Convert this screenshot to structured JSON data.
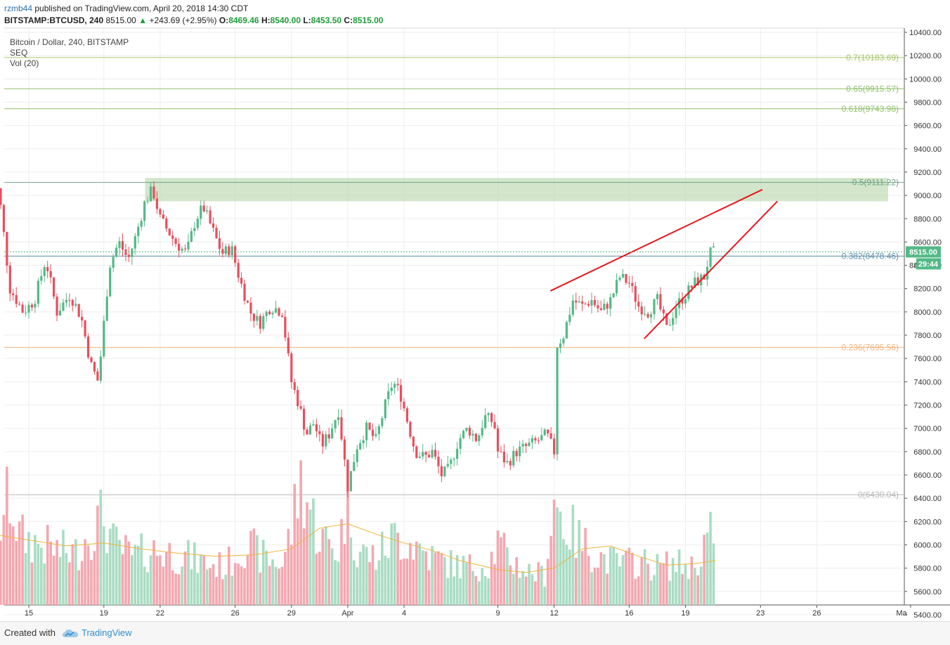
{
  "header": {
    "user": "rzmb44",
    "published_text": "published on TradingView.com, April 20, 2018 14:30 CDT",
    "symbol": "BITSTAMP:BTCUSD, 240",
    "last": "8515.00",
    "change": "+243.69 (+2.95%)",
    "o_label": "O:",
    "o_value": "8469.46",
    "h_label": "H:",
    "h_value": "8540.00",
    "l_label": "L:",
    "l_value": "8453.50",
    "c_label": "C:",
    "c_value": "8515.00"
  },
  "legend": {
    "series_name": "Bitcoin / Dollar, 240, BITSTAMP",
    "indicator_1": "SEQ",
    "indicator_2": "Vol (20)"
  },
  "footer": {
    "created_with": "Created with",
    "brand": "TradingView"
  },
  "colors": {
    "up": "#53b987",
    "down": "#eb4d5c",
    "vol_up": "#a9dcc3",
    "vol_down": "#f4a7b0",
    "trendline": "#e8161f",
    "zone": "#b5d6a9",
    "price_tag": "#53b987"
  },
  "chart_data": {
    "type": "candlestick",
    "symbol": "BTCUSD",
    "interval": "240",
    "y_axis": {
      "min": 5300,
      "max": 10400,
      "tick_labels": [
        "10400.00",
        "10200.00",
        "10000.00",
        "9800.00",
        "9600.00",
        "9400.00",
        "9200.00",
        "9000.00",
        "8800.00",
        "8600.00",
        "8400.00",
        "8200.00",
        "8000.00",
        "7800.00",
        "7600.00",
        "7400.00",
        "7200.00",
        "7000.00",
        "6800.00",
        "6600.00",
        "6400.00",
        "6200.00",
        "6000.00",
        "5800.00",
        "5600.00",
        "5400.00"
      ]
    },
    "x_axis": {
      "tick_labels": [
        {
          "label": "15",
          "day": 15
        },
        {
          "label": "19",
          "day": 19
        },
        {
          "label": "22",
          "day": 22
        },
        {
          "label": "26",
          "day": 26
        },
        {
          "label": "29",
          "day": 29
        },
        {
          "label": "Apr",
          "day": 32
        },
        {
          "label": "4",
          "day": 35
        },
        {
          "label": "9",
          "day": 40
        },
        {
          "label": "12",
          "day": 43
        },
        {
          "label": "16",
          "day": 47
        },
        {
          "label": "19",
          "day": 50
        },
        {
          "label": "23",
          "day": 54
        },
        {
          "label": "26",
          "day": 57
        },
        {
          "label": "Ma",
          "day": 62
        }
      ]
    },
    "price_path": [
      [
        13.0,
        9350
      ],
      [
        13.5,
        8900
      ],
      [
        14.0,
        8200
      ],
      [
        14.7,
        8000
      ],
      [
        15.3,
        8100
      ],
      [
        15.9,
        8450
      ],
      [
        16.5,
        8000
      ],
      [
        17.2,
        8150
      ],
      [
        17.8,
        7950
      ],
      [
        18.3,
        7550
      ],
      [
        18.7,
        7400
      ],
      [
        19.3,
        8400
      ],
      [
        19.8,
        8600
      ],
      [
        20.3,
        8450
      ],
      [
        20.7,
        8650
      ],
      [
        21.2,
        8950
      ],
      [
        21.6,
        9050
      ],
      [
        22.0,
        8800
      ],
      [
        22.4,
        8700
      ],
      [
        22.8,
        8600
      ],
      [
        23.4,
        8500
      ],
      [
        23.9,
        8800
      ],
      [
        24.3,
        8900
      ],
      [
        24.8,
        8700
      ],
      [
        25.3,
        8500
      ],
      [
        25.8,
        8550
      ],
      [
        26.2,
        8300
      ],
      [
        26.8,
        8000
      ],
      [
        27.3,
        7900
      ],
      [
        27.9,
        8050
      ],
      [
        28.5,
        8000
      ],
      [
        29.0,
        7400
      ],
      [
        29.4,
        7200
      ],
      [
        29.8,
        6950
      ],
      [
        30.2,
        7050
      ],
      [
        30.6,
        6850
      ],
      [
        31.0,
        6950
      ],
      [
        31.5,
        7150
      ],
      [
        32.0,
        6500
      ],
      [
        32.5,
        6850
      ],
      [
        33.0,
        7000
      ],
      [
        33.5,
        6900
      ],
      [
        34.0,
        7200
      ],
      [
        34.4,
        7400
      ],
      [
        34.8,
        7300
      ],
      [
        35.2,
        7050
      ],
      [
        35.6,
        6800
      ],
      [
        36.1,
        6750
      ],
      [
        36.5,
        6800
      ],
      [
        37.0,
        6600
      ],
      [
        37.4,
        6650
      ],
      [
        37.9,
        6900
      ],
      [
        38.4,
        7000
      ],
      [
        38.9,
        6900
      ],
      [
        39.3,
        7100
      ],
      [
        39.8,
        7050
      ],
      [
        40.0,
        6800
      ],
      [
        40.5,
        6700
      ],
      [
        41.0,
        6800
      ],
      [
        41.6,
        6850
      ],
      [
        42.2,
        6900
      ],
      [
        42.6,
        6950
      ],
      [
        43.0,
        6800
      ],
      [
        43.1,
        7700
      ],
      [
        43.5,
        7800
      ],
      [
        44.0,
        8100
      ],
      [
        44.5,
        8050
      ],
      [
        45.0,
        8100
      ],
      [
        45.5,
        8000
      ],
      [
        46.0,
        8100
      ],
      [
        46.5,
        8300
      ],
      [
        47.0,
        8250
      ],
      [
        47.5,
        8050
      ],
      [
        48.0,
        8000
      ],
      [
        48.5,
        8100
      ],
      [
        49.0,
        7850
      ],
      [
        49.5,
        8050
      ],
      [
        50.0,
        8150
      ],
      [
        50.5,
        8250
      ],
      [
        51.0,
        8300
      ],
      [
        51.3,
        8500
      ],
      [
        51.6,
        8515
      ]
    ],
    "volume_path": [
      [
        13.0,
        0.35
      ],
      [
        13.5,
        0.6
      ],
      [
        14.0,
        0.8
      ],
      [
        14.5,
        0.5
      ],
      [
        15.5,
        0.45
      ],
      [
        16.5,
        0.4
      ],
      [
        17.5,
        0.38
      ],
      [
        18.3,
        0.55
      ],
      [
        19.0,
        0.65
      ],
      [
        19.5,
        0.45
      ],
      [
        20.5,
        0.35
      ],
      [
        21.5,
        0.4
      ],
      [
        22.5,
        0.38
      ],
      [
        23.5,
        0.35
      ],
      [
        24.5,
        0.3
      ],
      [
        25.5,
        0.28
      ],
      [
        26.5,
        0.45
      ],
      [
        27.5,
        0.35
      ],
      [
        28.5,
        0.3
      ],
      [
        29.0,
        0.55
      ],
      [
        29.5,
        0.95
      ],
      [
        30.0,
        0.7
      ],
      [
        30.5,
        0.5
      ],
      [
        31.5,
        0.4
      ],
      [
        32.0,
        0.8
      ],
      [
        32.5,
        0.4
      ],
      [
        33.5,
        0.35
      ],
      [
        34.5,
        0.5
      ],
      [
        35.5,
        0.45
      ],
      [
        36.5,
        0.35
      ],
      [
        37.5,
        0.3
      ],
      [
        38.5,
        0.28
      ],
      [
        39.5,
        0.3
      ],
      [
        40.0,
        0.45
      ],
      [
        40.5,
        0.35
      ],
      [
        41.5,
        0.25
      ],
      [
        42.5,
        0.22
      ],
      [
        43.0,
        0.78
      ],
      [
        43.5,
        0.6
      ],
      [
        44.5,
        0.45
      ],
      [
        45.5,
        0.35
      ],
      [
        46.5,
        0.3
      ],
      [
        47.5,
        0.32
      ],
      [
        48.5,
        0.28
      ],
      [
        49.5,
        0.3
      ],
      [
        50.5,
        0.28
      ],
      [
        51.3,
        0.55
      ],
      [
        51.6,
        0.25
      ]
    ],
    "volume_ma": [
      [
        13.0,
        0.48
      ],
      [
        15.0,
        0.44
      ],
      [
        17.0,
        0.4
      ],
      [
        19.0,
        0.42
      ],
      [
        21.0,
        0.38
      ],
      [
        23.0,
        0.35
      ],
      [
        25.0,
        0.33
      ],
      [
        27.0,
        0.34
      ],
      [
        29.0,
        0.38
      ],
      [
        30.5,
        0.52
      ],
      [
        32.0,
        0.55
      ],
      [
        33.5,
        0.48
      ],
      [
        35.0,
        0.42
      ],
      [
        36.5,
        0.37
      ],
      [
        38.0,
        0.3
      ],
      [
        40.0,
        0.24
      ],
      [
        41.5,
        0.22
      ],
      [
        43.0,
        0.25
      ],
      [
        44.5,
        0.38
      ],
      [
        46.0,
        0.4
      ],
      [
        47.5,
        0.33
      ],
      [
        49.0,
        0.27
      ],
      [
        50.5,
        0.28
      ],
      [
        51.6,
        0.3
      ]
    ],
    "fib_levels": [
      {
        "ratio": "0.7",
        "price": 10183.69,
        "label": "0.7(10183.69)",
        "color": "#a8c66c"
      },
      {
        "ratio": "0.65",
        "price": 9915.57,
        "label": "0.65(9915.57)",
        "color": "#8fbf6a"
      },
      {
        "ratio": "0.618",
        "price": 9743.98,
        "label": "0.618(9743.98)",
        "color": "#8fbf6a"
      },
      {
        "ratio": "0.5",
        "price": 9111.22,
        "label": "0.5(9111.22)",
        "color": "#6fa287"
      },
      {
        "ratio": "0.382",
        "price": 8478.46,
        "label": "0.382(8478.46)",
        "color": "#5e8fa6"
      },
      {
        "ratio": "0.236",
        "price": 7695.56,
        "label": "0.236(7695.56)",
        "color": "#f2b27c"
      },
      {
        "ratio": "0",
        "price": 6430.04,
        "label": "0(6430.04)",
        "color": "#b8b8b8"
      }
    ],
    "resistance_zone": {
      "day_start": 21.2,
      "day_end": 62.0,
      "price_low": 8950,
      "price_high": 9150
    },
    "trendlines": [
      {
        "day1": 42.8,
        "p1": 8180,
        "day2": 54.1,
        "p2": 9050
      },
      {
        "day1": 47.8,
        "p1": 7770,
        "day2": 54.9,
        "p2": 8950
      }
    ],
    "last_price_label": "8515.00",
    "countdown_label": "29:44",
    "partial_axis_label": "84"
  }
}
